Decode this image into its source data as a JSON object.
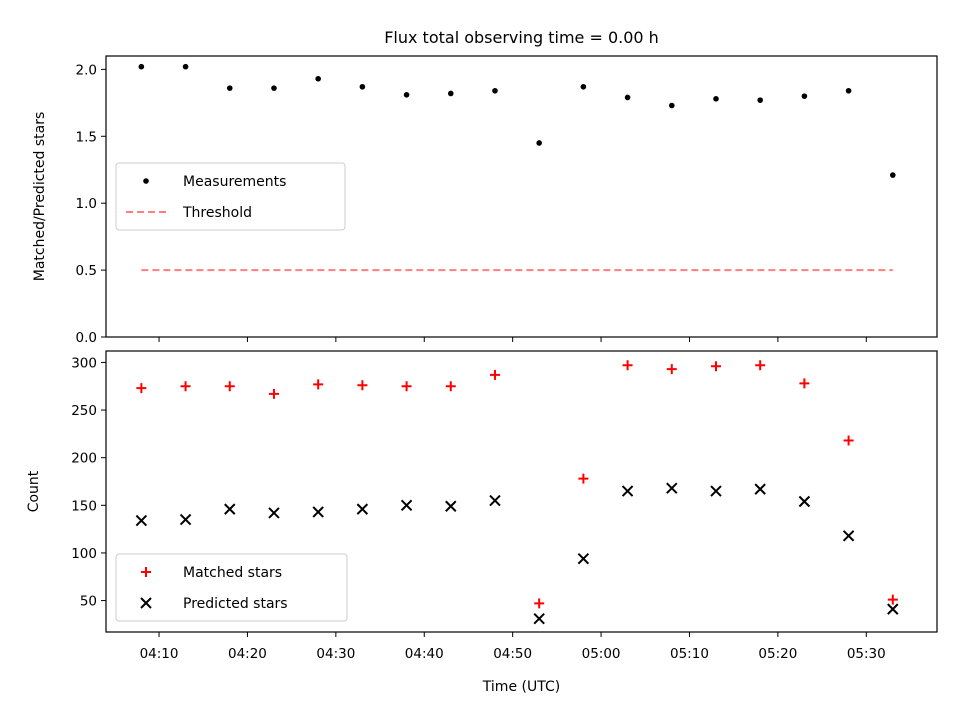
{
  "figure": {
    "title": "Flux total observing time = 0.00 h"
  },
  "chart_data": [
    {
      "type": "scatter",
      "ylabel": "Matched/Predicted stars",
      "ylim": [
        0,
        2.1
      ],
      "yticks": [
        0.0,
        0.5,
        1.0,
        1.5,
        2.0
      ],
      "ytick_labels": [
        "0.0",
        "0.5",
        "1.0",
        "1.5",
        "2.0"
      ],
      "xlim": [
        "04:04",
        "05:38"
      ],
      "legend_position": "center-left",
      "series": [
        {
          "name": "Measurements",
          "marker": "dot",
          "color": "#000000",
          "points": [
            {
              "x": "04:08",
              "y": 2.02
            },
            {
              "x": "04:13",
              "y": 2.02
            },
            {
              "x": "04:18",
              "y": 1.86
            },
            {
              "x": "04:23",
              "y": 1.86
            },
            {
              "x": "04:28",
              "y": 1.93
            },
            {
              "x": "04:33",
              "y": 1.87
            },
            {
              "x": "04:38",
              "y": 1.81
            },
            {
              "x": "04:43",
              "y": 1.82
            },
            {
              "x": "04:48",
              "y": 1.84
            },
            {
              "x": "04:53",
              "y": 1.45
            },
            {
              "x": "04:58",
              "y": 1.87
            },
            {
              "x": "05:03",
              "y": 1.79
            },
            {
              "x": "05:08",
              "y": 1.73
            },
            {
              "x": "05:13",
              "y": 1.78
            },
            {
              "x": "05:18",
              "y": 1.77
            },
            {
              "x": "05:23",
              "y": 1.8
            },
            {
              "x": "05:28",
              "y": 1.84
            },
            {
              "x": "05:33",
              "y": 1.21
            }
          ]
        },
        {
          "name": "Threshold",
          "marker": "dashed-line",
          "color": "#ff7f7f",
          "points": [
            {
              "x": "04:08",
              "y": 0.5
            },
            {
              "x": "05:33",
              "y": 0.5
            }
          ]
        }
      ]
    },
    {
      "type": "scatter",
      "xlabel": "Time (UTC)",
      "ylabel": "Count",
      "ylim": [
        17,
        312
      ],
      "yticks": [
        50,
        100,
        150,
        200,
        250,
        300
      ],
      "ytick_labels": [
        "50",
        "100",
        "150",
        "200",
        "250",
        "300"
      ],
      "xlim": [
        "04:04",
        "05:38"
      ],
      "xticks": [
        "04:10",
        "04:20",
        "04:30",
        "04:40",
        "04:50",
        "05:00",
        "05:10",
        "05:20",
        "05:30"
      ],
      "xtick_labels": [
        "04:10",
        "04:20",
        "04:30",
        "04:40",
        "04:50",
        "05:00",
        "05:10",
        "05:20",
        "05:30"
      ],
      "legend_position": "lower-left",
      "series": [
        {
          "name": "Matched stars",
          "marker": "plus",
          "color": "#ff0000",
          "points": [
            {
              "x": "04:08",
              "y": 273
            },
            {
              "x": "04:13",
              "y": 275
            },
            {
              "x": "04:18",
              "y": 275
            },
            {
              "x": "04:23",
              "y": 267
            },
            {
              "x": "04:28",
              "y": 277
            },
            {
              "x": "04:33",
              "y": 276
            },
            {
              "x": "04:38",
              "y": 275
            },
            {
              "x": "04:43",
              "y": 275
            },
            {
              "x": "04:48",
              "y": 287
            },
            {
              "x": "04:53",
              "y": 47
            },
            {
              "x": "04:58",
              "y": 178
            },
            {
              "x": "05:03",
              "y": 297
            },
            {
              "x": "05:08",
              "y": 293
            },
            {
              "x": "05:13",
              "y": 296
            },
            {
              "x": "05:18",
              "y": 297
            },
            {
              "x": "05:23",
              "y": 278
            },
            {
              "x": "05:28",
              "y": 218
            },
            {
              "x": "05:33",
              "y": 51
            }
          ]
        },
        {
          "name": "Predicted stars",
          "marker": "x",
          "color": "#000000",
          "points": [
            {
              "x": "04:08",
              "y": 134
            },
            {
              "x": "04:13",
              "y": 135
            },
            {
              "x": "04:18",
              "y": 146
            },
            {
              "x": "04:23",
              "y": 142
            },
            {
              "x": "04:28",
              "y": 143
            },
            {
              "x": "04:33",
              "y": 146
            },
            {
              "x": "04:38",
              "y": 150
            },
            {
              "x": "04:43",
              "y": 149
            },
            {
              "x": "04:48",
              "y": 155
            },
            {
              "x": "04:53",
              "y": 31
            },
            {
              "x": "04:58",
              "y": 94
            },
            {
              "x": "05:03",
              "y": 165
            },
            {
              "x": "05:08",
              "y": 168
            },
            {
              "x": "05:13",
              "y": 165
            },
            {
              "x": "05:18",
              "y": 167
            },
            {
              "x": "05:23",
              "y": 154
            },
            {
              "x": "05:28",
              "y": 118
            },
            {
              "x": "05:33",
              "y": 41
            }
          ]
        }
      ]
    }
  ]
}
